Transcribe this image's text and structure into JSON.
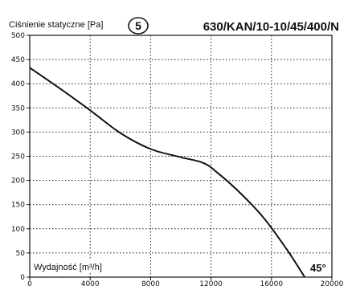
{
  "chart_data": {
    "type": "line",
    "ylabel": "Ciśnienie statyczne [Pa]",
    "xlabel": "Wydajność [m³/h]",
    "badge": "5",
    "model": "630/KAN/10-10/45/400/N",
    "angle_label": "45°",
    "xlim": [
      0,
      20000
    ],
    "ylim": [
      0,
      500
    ],
    "x_ticks": [
      0,
      4000,
      8000,
      12000,
      16000,
      20000
    ],
    "y_ticks": [
      0,
      50,
      100,
      150,
      200,
      250,
      300,
      350,
      400,
      450,
      500
    ],
    "grid": true,
    "series": [
      {
        "values": [
          {
            "x": 0,
            "y": 433
          },
          {
            "x": 2000,
            "y": 390
          },
          {
            "x": 4000,
            "y": 345
          },
          {
            "x": 6000,
            "y": 298
          },
          {
            "x": 8000,
            "y": 265
          },
          {
            "x": 10000,
            "y": 248
          },
          {
            "x": 11500,
            "y": 236
          },
          {
            "x": 12500,
            "y": 214
          },
          {
            "x": 14000,
            "y": 172
          },
          {
            "x": 15500,
            "y": 122
          },
          {
            "x": 17000,
            "y": 58
          },
          {
            "x": 18200,
            "y": 0
          }
        ],
        "color": "#111111"
      }
    ]
  }
}
